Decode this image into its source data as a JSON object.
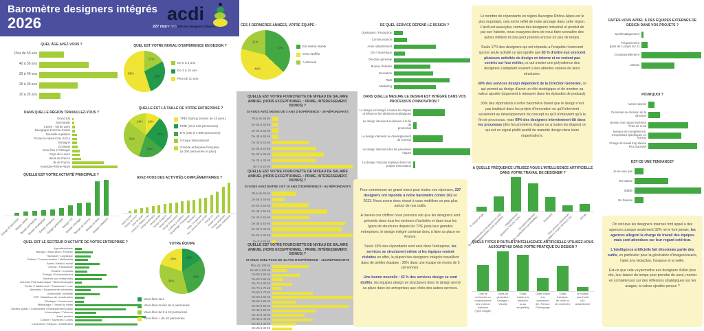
{
  "header": {
    "title": "Baromètre designers intégrés",
    "year": "2026",
    "responses": "227 réponses",
    "logo_text": "acdi",
    "logo_tagline": "à la croisée des designers intégrés."
  },
  "colors": {
    "purple": "#4b4f9e",
    "green": "#43a843",
    "light_green": "#a5cd39",
    "dark_green": "#219a4a",
    "yellow_green": "#c9dc35",
    "yellow": "#efe434",
    "pale_yellow_bg": "#fbf4c6",
    "gray_panel": "#c7c7c7",
    "bold_text": "#3f46a5"
  },
  "chart_data": {
    "see": "charts"
  },
  "charts": {
    "age": {
      "type": "hbar",
      "color": "light_green",
      "title": "QUEL ÂGE AVEZ-VOUS ?",
      "categories": [
        "Plus de 50 ans",
        "40 à 50 ans",
        "30 à 40 ans",
        "25 à 30 ans",
        "20 à 25 ans"
      ],
      "values": [
        32,
        63,
        100,
        49,
        27
      ]
    },
    "region": {
      "type": "hbar",
      "color": "light_green",
      "title": "DANS QUELLE RÉGION TRAVAILLEZ-VOUS ?",
      "categories": [
        "Grand Est",
        "Normandie",
        "Centre - Val de Loire",
        "Bourgogne-Franche-Comté",
        "Nouvelle-Aquitaine",
        "Provence-Alpes-Côte d'Azur",
        "Bretagne",
        "Occitanie",
        "Vous êtes à l'étranger",
        "Pays de la Loire",
        "Hauts de France",
        "Île de France",
        "Auvergne-Rhône-Alpes"
      ],
      "values": [
        3,
        5,
        6,
        6,
        10,
        11,
        11,
        12,
        17,
        17,
        19,
        70,
        100
      ]
    },
    "activite": {
      "type": "vbar",
      "color": "green",
      "label_mode": "rotate",
      "title": "QUELLE EST VOTRE ACTIVITÉ PRINCIPALE ?",
      "categories": [
        "Design d'interaction",
        "Design textile",
        "Design packaging",
        "Design stratégique",
        "Design d'espace",
        "Design graphique",
        "Design UX",
        "Design manager",
        "Design de service",
        "Design produit",
        "Design industriel"
      ],
      "values": [
        6,
        10,
        13,
        14,
        17,
        20,
        28,
        34,
        36,
        95,
        100
      ]
    },
    "secteur": {
      "type": "hbar",
      "color": "green",
      "title": "QUEL EST LE SECTEUR D'ACTIVITÉ DE VOTRE ENTREPRISE ?",
      "categories": [
        "Agroalimentaire",
        "Banque / Assurance / Finance",
        "Transport / Logistique",
        "Édition / Communication / Multimédia",
        "Santé / Médico-social",
        "Chimie / Parachimie",
        "Études / Conseils",
        "Énergie / Environnement",
        "Services aux entreprises",
        "Industrie Pharmaceutique / Biotechnologies",
        "Textile / Habillement / Chaussure / Luxe",
        "Machines / Équipements industriels",
        "Automobile / Mobilité",
        "BTP / Matériaux de construction",
        "Plastique / Caoutchouc",
        "Métallurgie / Travail du métal",
        "Secteur public / Collectivités / Établissement public",
        "Informatique / Télécom",
        "Autre secteur",
        "Culture / Tourisme / Loisirs",
        "Commerce / Négoce / Distribution"
      ],
      "values": [
        10,
        25,
        22,
        18,
        35,
        20,
        17,
        45,
        38,
        10,
        60,
        22,
        35,
        14,
        13,
        90,
        72,
        30,
        100,
        38,
        88
      ]
    },
    "niveau": {
      "type": "pie",
      "legend": "right",
      "title": "QUEL EST VOTRE NIVEAU D'EXPÉRIENCE EN DESIGN ?",
      "slices": [
        {
          "label": "De 0 à 3 ans",
          "value": 17,
          "color": "light_green"
        },
        {
          "label": "De 3 à 10 ans",
          "value": 28,
          "color": "dark_green"
        },
        {
          "label": "Plus de 10 ans",
          "value": 55,
          "color": "yellow"
        }
      ]
    },
    "taille": {
      "type": "pie",
      "legend": "right",
      "title": "QUELLE EST LA TAILLE DE VOTRE ENTREPRISE ?",
      "slices": [
        {
          "label": "TPE/ Startup (moins de 10 pers.)",
          "value": 11,
          "color": "yellow"
        },
        {
          "label": "PME (10 à 249 personnes)",
          "value": 25,
          "color": "dark_green"
        },
        {
          "label": "ETI (250 à 4 999 personnes)",
          "value": 19,
          "color": "green"
        },
        {
          "label": "Groupe international",
          "value": 31,
          "color": "light_green"
        },
        {
          "label": "Grande entreprise française|(5 000 personnes et plus)",
          "value": 14,
          "color": "yellow_green"
        }
      ]
    },
    "activcomp": {
      "type": "vbar",
      "color": "light_green",
      "label_mode": "rotate",
      "title": "AVEZ-VOUS DES ACTIVITÉS COMPLÉMENTAIRES ?",
      "categories": [
        "Autre activité",
        "Design de mode",
        "Chef de projet",
        "Artisanat / Métiers d'art",
        "Design packaging",
        "Design textile",
        "Design d'espace",
        "Design tendance",
        "Design d'interaction",
        "Couleurs & matières",
        "Maquettage / Prototypage",
        "Illustration",
        "Veille / Prospective",
        "Non, aucune autre activité",
        "Design UX",
        "Design produit",
        "Design graphique",
        "Design stratégique"
      ],
      "values": [
        6,
        10,
        14,
        18,
        22,
        25,
        28,
        31,
        34,
        37,
        40,
        43,
        46,
        50,
        58,
        70,
        85,
        100
      ]
    },
    "equipe": {
      "type": "pie",
      "legend": "bottom",
      "title": "VOTRE ÉQUIPE",
      "slices": [
        {
          "label": "Vous êtes seul",
          "value": 16,
          "color": "dark_green"
        },
        {
          "label": "Vous êtes moins de 5 personnes",
          "value": 30,
          "color": "green"
        },
        {
          "label": "Vous êtes de 5 à 10 personnes",
          "value": 34,
          "color": "light_green"
        },
        {
          "label": "Vous êtes + de 10 personnes",
          "value": 20,
          "color": "yellow"
        }
      ]
    },
    "evolution": {
      "type": "pie",
      "legend": "right",
      "title": "CES 5 DERNIÈRES ANNÉES, VOTRE ÉQUIPE :",
      "title_align": "left",
      "slices": [
        {
          "label": "Est restée stable",
          "value": 37,
          "color": "green"
        },
        {
          "label": "S'est étoffée",
          "value": 42,
          "color": "yellow"
        },
        {
          "label": "A diminué",
          "value": 21,
          "color": "light_green"
        }
      ]
    },
    "salaire1": {
      "type": "hbar",
      "color": "yellow",
      "title": "QUELLE EST VOTRE FOURCHETTE DE NIVEAU DE SALAIRE ANNUEL (HORS EXCEPTIONNEL : PRIME, INTÉRESSEMENT, BONUS) ?",
      "subtitle": "SI VOUS AVEZ MOINS DE 3 ANS D'EXPÉRIENCE - 39 RÉPONDANTS",
      "categories": [
        "Plus de 60 k€",
        "De 55 à 60 k€",
        "De 50 à 55 k€",
        "De 45 à 50 k€",
        "De 40 à 45 k€",
        "De 35 à 40 k€",
        "De 30 à 35 k€",
        "De 25 à 30 k€",
        "De 0 à 25 k€"
      ],
      "values": [
        8,
        8,
        8,
        8,
        45,
        55,
        64,
        55,
        100
      ]
    },
    "salaire2": {
      "type": "hbar",
      "color": "yellow",
      "title": "QUELLE EST VOTRE FOURCHETTE DE NIVEAU DE SALAIRE ANNUEL (HORS EXCEPTIONNEL : PRIME, INTÉRESSEMENT, BONUS) ?",
      "subtitle": "SI VOUS AVEZ ENTRE 3 ET 10 ANS D'EXPÉRIENCE - 64 RÉPONDANTS",
      "categories": [
        "Plus de 60 k€",
        "De 55 à 60 k€",
        "De 50 à 55 k€",
        "De 45 à 50 k€",
        "De 40 à 45 k€",
        "De 35 à 40 k€",
        "De 30 à 35 k€",
        "De 25 à 30 k€",
        "De 0 à 25 k€"
      ],
      "values": [
        30,
        15,
        45,
        68,
        45,
        91,
        86,
        100,
        4
      ]
    },
    "salaire3": {
      "type": "hbar",
      "color": "yellow",
      "title": "QUELLE EST VOTRE FOURCHETTE DE NIVEAU DE SALAIRE ANNUEL (HORS EXCEPTIONNEL : PRIME, INTÉRESSEMENT, BONUS) ?",
      "subtitle": "SI VOUS AVEZ PLUS DE 10 ANS D'EXPÉRIENCE - 124 RÉPONDANTS",
      "categories": [
        "Plus de 100 k€",
        "De 90 à 100 k€",
        "De 85 à 90 k€",
        "De 80 à 85 k€",
        "De 75 à 80 k€",
        "De 70 à 75 k€",
        "De 65 à 70 k€",
        "De 60 à 65 k€",
        "De 55 à 60 k€",
        "De 50 à 55 k€",
        "De 45 à 50 k€",
        "De 40 à 45 k€",
        "De 35 à 40 k€",
        "De 30 à 35 k€",
        "De 25 à 30 k€"
      ],
      "values": [
        45,
        19,
        34,
        14,
        25,
        11,
        50,
        100,
        29,
        95,
        55,
        40,
        50,
        30,
        25
      ]
    },
    "service": {
      "type": "hbar",
      "color": "green",
      "title": "DE QUEL SERVICE DÉPEND LE DESIGN ?",
      "categories": [
        "Opérations / Production",
        "Communication",
        "Autre rattachement",
        "DSI / Numérique",
        "Direction générale",
        "Bureau d'études",
        "Innovation",
        "R&D",
        "Marketing"
      ],
      "values": [
        12,
        17,
        55,
        14,
        100,
        48,
        51,
        73,
        55
      ]
    },
    "innovation": {
      "type": "hbar",
      "color": "green",
      "title": "DANS QUELLE MESURE LE DESIGN EST INTÉGRÉ DANS VOS PROCESSUS D'INNOVATION ?",
      "categories": [
        "Le design est intégré à toutes les étapes|et influence les décisions stratégiques",
        "Le design intervient seulement à la fin du|processus",
        "Le design intervient au développement|du concept",
        "Le design intervient dès les premières|étapes",
        "Le design n'est pas impliqué dans nos|projets d'innovation"
      ],
      "values": [
        55,
        6,
        52,
        100,
        4
      ]
    },
    "iafreq": {
      "type": "vbar",
      "color": "green",
      "label_mode": "rotate",
      "title": "À QUELLE FRÉQUENCE UTILISEZ-VOUS L'INTELLIGENCE ARTIFICIELLE DANS VOTRE TRAVAIL DE DESIGNER ?",
      "categories": [
        "À chaque projet",
        "Quotidiennement (c'est devenu un outil|indispensable à mon quotidien)",
        "Régulièrement|(plusieurs fois par mois)",
        "Occasionnellement|(tests, explorations ponctuelles)",
        "Rarement",
        "Vous pensez commencer|à l'utiliser à moyen terme (1 an)",
        "Jamais"
      ],
      "values": [
        14,
        45,
        100,
        83,
        42,
        18,
        23
      ]
    },
    "iatools": {
      "type": "vbar",
      "color": "green",
      "label_mode": "stack",
      "title": "QUELS TYPES D'OUTILS D'INTELLIGENCE ARTIFICIELLE UTILISEZ-VOUS AUJOURD'HUI DANS VOTRE PRATIQUE DU DESIGN ?",
      "categories": [
        "Outil de|recherche en|remplacement|des moteurs|classique|(Type Google)",
        "Outils de|génération|d'images /|Visuels",
        "Outils|d'aide à la|rédaction|ou au|storytelling",
        "Outils d'aide|à la|conception|3D / Rendu /|Prototypage",
        "Outils|d'analyse,|de veille ou|de recherche",
        "Je n'utilise|pas d'outil|d'IA|actuellement"
      ],
      "values": [
        65,
        100,
        92,
        33,
        63,
        10
      ]
    },
    "externes": {
      "type": "hbar",
      "color": "green",
      "title": "FAITES-VOUS APPEL À DES ÉQUIPES EXTERNES DE DESIGN DANS VOS PROJETS ?",
      "categories": [
        "Systématiquement",
        "Fréquemment|(plus de 1 projet sur 2)",
        "Occasionnellement",
        "Jamais"
      ],
      "values": [
        4,
        10,
        100,
        55
      ]
    },
    "pourquoi": {
      "type": "hbar",
      "color": "green",
      "title": "POURQUOI ?",
      "categories": [
        "Autres raisons",
        "Demande ou décision de la direction",
        "Besoin d'un regard extérieur|Prise de recul",
        "Manque de compétences,|d'expertises spécifiques en interne",
        "Charge de travail trop élevée|Pics d'activité"
      ],
      "values": [
        12,
        22,
        75,
        62,
        92
      ]
    },
    "tendance": {
      "type": "hbar",
      "color": "green",
      "title": "EST-CE UNE TENDANCE?",
      "categories": [
        "Je ne sais pas",
        "En baisse",
        "Stable",
        "En hausse"
      ],
      "values": [
        13,
        50,
        100,
        13
      ]
    }
  },
  "notes": {
    "intro": {
      "paragraphs": [
        [
          {
            "t": "Pour commencer un grand merci pour toutes vos réponses, "
          },
          {
            "t": "227 designers ont répondu à notre baromètre contre 162",
            "b": true
          },
          {
            "t": " en 2023. Nous avons donc réussi à vous mobiliser un peu plus autour de nos outils."
          }
        ],
        [
          {
            "t": "A travers ces chiffres nous pouvons voir que les designers sont présents dans tous les secteurs d'activités et dans tous les types de structures depuis les TPE jusqu'aux grandes entreprises,  le design intégré continue donc à faire sa place en France."
          }
        ],
        [
          {
            "t": "Seuls 16% des répondants sont seul dans l'entreprise, "
          },
          {
            "t": "les services se structurent même si les équipes restent réduites",
            "b": true
          },
          {
            "t": " en effet, la plupart des designers intégrés travaillent dans de petites équipes : 30% dans une équipe de moins de 5 personnes."
          }
        ],
        [
          {
            "t": "Une bonne nouvelle :  42 % des services design se sont étoffés",
            "b": true
          },
          {
            "t": ", les équipes design se structurent donc le design prend sa place dans les entreprises aux côtés des autres services."
          }
        ]
      ]
    },
    "region_analysis": {
      "paragraphs": [
        [
          {
            "t": "Le nombre de répondants en région Auvergne Rhône-Alpes est le plus important, cela est le reflet de notre ancrage dans cette région. L'acdi est aussi plus connue des designers industriel et produit  de par son histoire, nous essayons donc de nous faire connaître des autres métiers et cela peut prendre encore un peu de temps."
          }
        ],
        [
          {
            "t": "Seuls 17% des designers qui ont répondu a l'enquête n'exercent qu'une seule activité ce qui signifie que "
          },
          {
            "t": "83 % d'entre eux exercent plusieurs activités de design en interne et ne restent pas centrés sur leur métier,",
            "b": true
          },
          {
            "t": " ce qui montre une polyvalence des designers s'adaptant souvent à des attentes variées de leurs structures."
          }
        ],
        [
          {
            "t": "30% des services design dépendent de la Direction Générale,",
            "b": true
          },
          {
            "t": " ce qui permet au design  d'avoir un rôle stratégique et de montrer sa valeur ajoutée (argument à retrouver dans les épisodes de podcast)."
          }
        ],
        [
          {
            "t": "30% des répondants à notre baromètre disent que le design  n'est pas impliqué dans les projets d'innovation ou qu'il intervient seulement au développement du concept ou qu'il n'intervient qu'à la fin de processus, mais "
          },
          {
            "t": "69% des designers interviennent tôt dans les processus",
            "b": true
          },
          {
            "t": " (dès les premières étapes ou à toutes les étapes) ce qui est un signal plutôt positif de maturité design dans leurs organisations."
          }
        ]
      ]
    },
    "agencies_ai": {
      "paragraphs": [
        [
          {
            "t": "On voit que les designers internes font appel à des agences puisque seulement 32% ne le font jamais, "
          },
          {
            "t": "les agences allègent la charge de travail des équipes mais sont attendues sur leur regard extérieur.",
            "b": true
          }
        ],
        [
          {
            "t": "L'intelligence artificielle fait désormais partie des outils",
            "b": true
          },
          {
            "t": ", en particulier pour la génération d'images/visuels, l'aide à la rédaction, l'analyse et la veille."
          }
        ],
        [
          {
            "t": "Est-ce que cela va permettre aux designers d'aller plus vite, leur laisser du temps pour prendre du recul, monter en compétences sur des réflexions stratégiques sur les usages, la valeur ajoutée perçue ?"
          }
        ]
      ]
    }
  }
}
